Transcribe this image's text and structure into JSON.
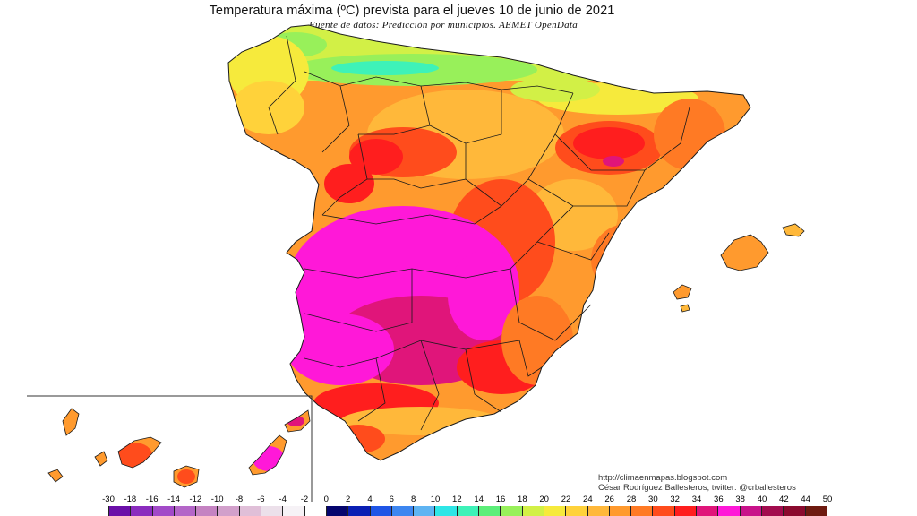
{
  "title": "Temperatura máxima (ºC) prevista para el jueves 10 de junio de 2021",
  "subtitle": "Fuente de datos: Predicción por municipios. AEMET OpenData",
  "credits": {
    "url": "http://climaenmapas.blogspot.com",
    "author": "César Rodríguez Ballesteros, twitter: @crballesteros"
  },
  "legend": {
    "ticks": [
      "-30",
      "-18",
      "-16",
      "-14",
      "-12",
      "-10",
      "-8",
      "-6",
      "-4",
      "-2",
      "0",
      "2",
      "4",
      "6",
      "8",
      "10",
      "12",
      "14",
      "16",
      "18",
      "20",
      "22",
      "24",
      "26",
      "28",
      "30",
      "32",
      "34",
      "36",
      "38",
      "40",
      "42",
      "44",
      "50"
    ],
    "colors": [
      "#6a0fa8",
      "#8a2cbe",
      "#a24ac8",
      "#b466c8",
      "#c583c2",
      "#d2a0cb",
      "#e0bfd8",
      "#ece0ea",
      "#f6f2f6",
      "#ffffff",
      "#05056e",
      "#0a1fb4",
      "#1f55e6",
      "#3d86f0",
      "#5fb4f2",
      "#2ee6e6",
      "#3ef2b8",
      "#5cee7a",
      "#98f05a",
      "#d2f046",
      "#f6ea3c",
      "#ffd23a",
      "#ffb83a",
      "#ff9a2e",
      "#ff7a24",
      "#ff4c1c",
      "#ff1e1e",
      "#e0157a",
      "#ff18d8",
      "#c8128a",
      "#a20c4e",
      "#8a0a2e",
      "#6e1a10"
    ]
  },
  "map": {
    "region": "España peninsular, Baleares y Canarias",
    "palette": {
      "border": "#1a1a1a",
      "inset_frame": "#333333"
    }
  }
}
